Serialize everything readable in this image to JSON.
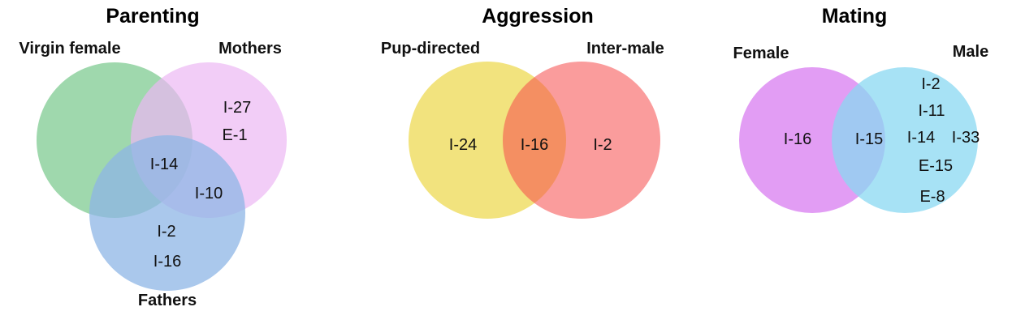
{
  "diagrams": [
    {
      "title": "Parenting",
      "sets": [
        {
          "label": "Virgin female",
          "color": "#7fcb92"
        },
        {
          "label": "Mothers",
          "color": "#ecb8f4"
        },
        {
          "label": "Fathers",
          "color": "#8db6e6"
        }
      ],
      "regions": {
        "mothers_only": [
          "I-27",
          "E-1"
        ],
        "all_three": [
          "I-14"
        ],
        "mothers_fathers": [
          "I-10"
        ],
        "fathers_only": [
          "I-2",
          "I-16"
        ]
      }
    },
    {
      "title": "Aggression",
      "sets": [
        {
          "label": "Pup-directed",
          "color": "#f1e070"
        },
        {
          "label": "Inter-male",
          "color": "#f54a4a"
        }
      ],
      "regions": {
        "pup_only": [
          "I-24"
        ],
        "overlap": [
          "I-16"
        ],
        "inter_male_only": [
          "I-2"
        ]
      }
    },
    {
      "title": "Mating",
      "sets": [
        {
          "label": "Female",
          "color": "#e29df4"
        },
        {
          "label": "Male",
          "color": "#8ad8f2"
        }
      ],
      "regions": {
        "female_only": [
          "I-16"
        ],
        "overlap": [
          "I-15"
        ],
        "male_only": [
          "I-2",
          "I-11",
          "I-14",
          "I-33",
          "E-15",
          "E-8"
        ]
      }
    }
  ]
}
